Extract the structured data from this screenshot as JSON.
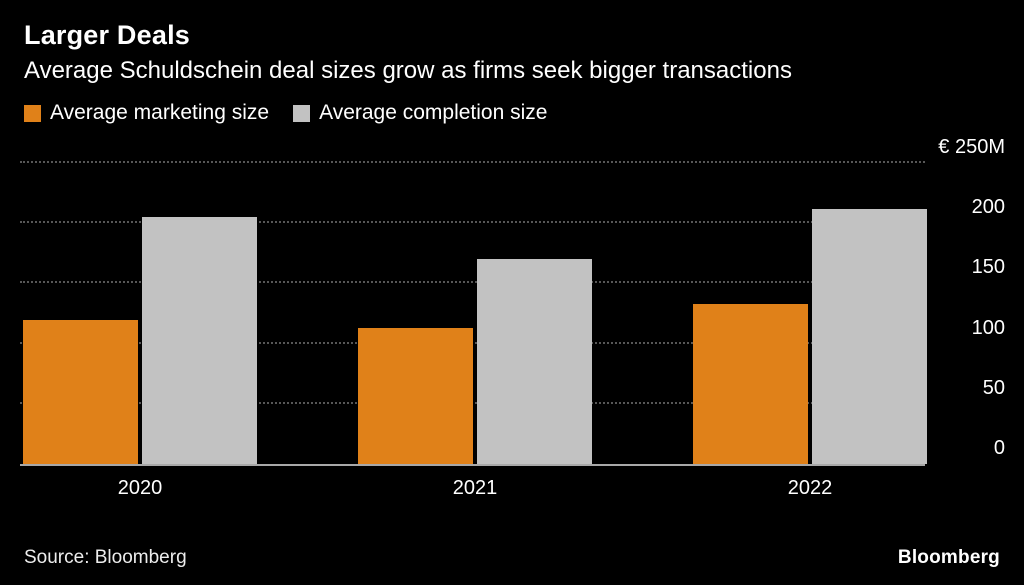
{
  "title": "Larger Deals",
  "subtitle": "Average Schuldschein deal sizes grow as firms seek bigger transactions",
  "legend": [
    {
      "label": "Average marketing size",
      "color": "#e08119"
    },
    {
      "label": "Average completion size",
      "color": "#c2c2c2"
    }
  ],
  "source": "Source: Bloomberg",
  "brand": "Bloomberg",
  "chart_data": {
    "type": "bar",
    "categories": [
      "2020",
      "2021",
      "2022"
    ],
    "series": [
      {
        "name": "Average marketing size",
        "color": "#e08119",
        "values": [
          120,
          113,
          133
        ]
      },
      {
        "name": "Average completion size",
        "color": "#c2c2c2",
        "values": [
          205,
          170,
          212
        ]
      }
    ],
    "title": "Larger Deals",
    "xlabel": "",
    "ylabel": "€M",
    "ylim": [
      0,
      250
    ],
    "yticks": [
      0,
      50,
      100,
      150,
      200,
      250
    ],
    "ytick_labels": [
      "0",
      "50",
      "100",
      "150",
      "200",
      "€ 250M"
    ],
    "grid": "dotted horizontal",
    "legend_position": "top-left",
    "background": "#000000"
  }
}
